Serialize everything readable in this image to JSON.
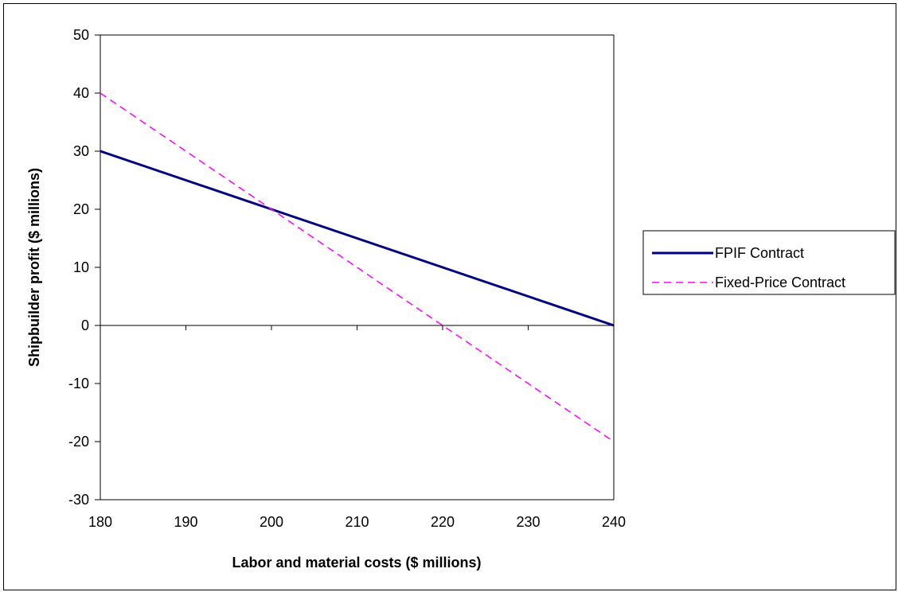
{
  "chart_data": {
    "type": "line",
    "title": "",
    "xlabel": "Labor and material costs ($ millions)",
    "ylabel": "Shipbuilder profit ($ millions)",
    "xlim": [
      180,
      240
    ],
    "ylim": [
      -30,
      50
    ],
    "x_ticks": [
      180,
      190,
      200,
      210,
      220,
      230,
      240
    ],
    "y_ticks": [
      50,
      40,
      30,
      20,
      10,
      0,
      -10,
      -20,
      -30
    ],
    "grid": false,
    "legend_position": "right",
    "series": [
      {
        "name": "FPIF Contract",
        "color": "#000080",
        "style": "solid",
        "x": [
          180,
          190,
          200,
          210,
          220,
          230,
          240
        ],
        "y": [
          30,
          25,
          20,
          15,
          10,
          5,
          0
        ]
      },
      {
        "name": "Fixed-Price Contract",
        "color": "#FF00FF",
        "style": "dashed",
        "x": [
          180,
          190,
          200,
          210,
          220,
          230,
          240
        ],
        "y": [
          40,
          30,
          20,
          10,
          0,
          -10,
          -20
        ]
      }
    ]
  }
}
